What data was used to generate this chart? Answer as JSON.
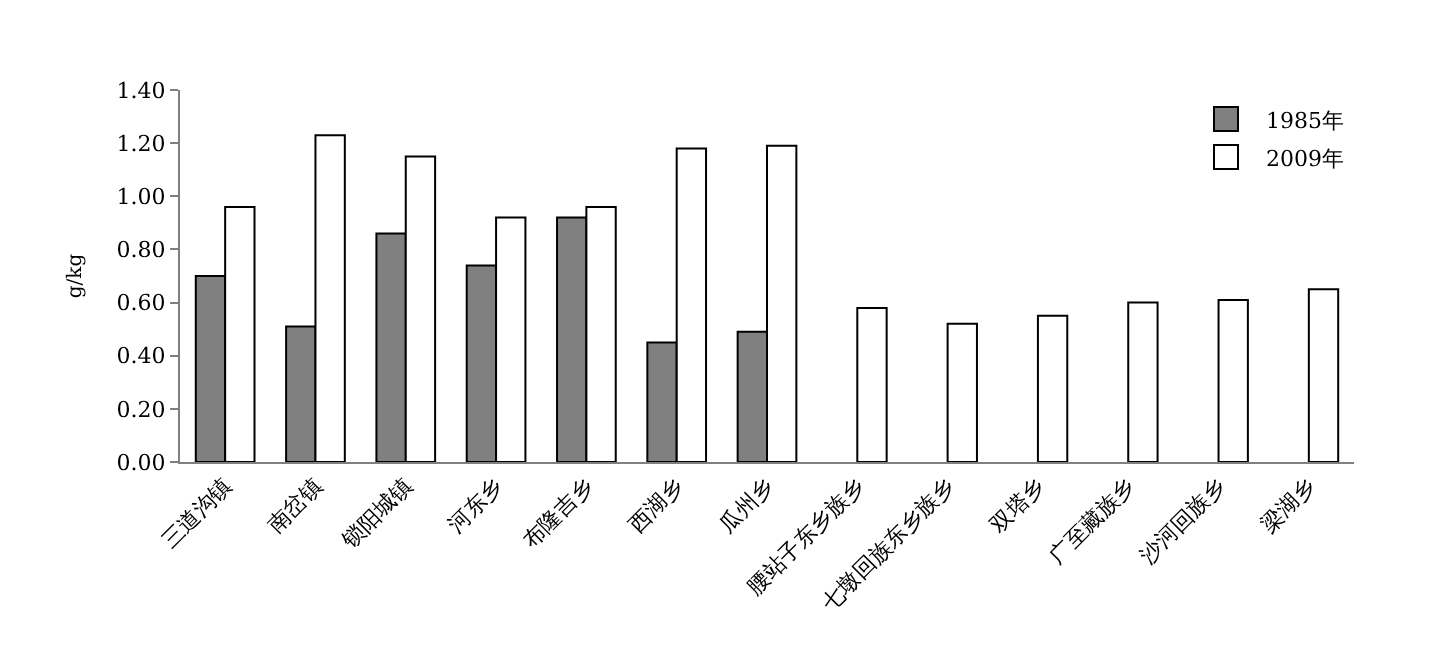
{
  "chart_data": {
    "type": "bar",
    "ylabel": "g/kg",
    "categories": [
      "三道沟镇",
      "南岔镇",
      "锁阳城镇",
      "河东乡",
      "布隆吉乡",
      "西湖乡",
      "瓜州乡",
      "腰站子东乡族乡",
      "七墩回族东乡族乡",
      "双塔乡",
      "广至藏族乡",
      "沙河回族乡",
      "梁湖乡"
    ],
    "series": [
      {
        "name": "1985年",
        "color": "#808080",
        "values": [
          0.7,
          0.51,
          0.86,
          0.74,
          0.92,
          0.45,
          0.49,
          null,
          null,
          null,
          null,
          null,
          null
        ]
      },
      {
        "name": "2009年",
        "color": "#ffffff",
        "values": [
          0.96,
          1.23,
          1.15,
          0.92,
          0.96,
          1.18,
          1.19,
          0.58,
          0.52,
          0.55,
          0.6,
          0.61,
          0.65
        ]
      }
    ],
    "ylim": [
      0,
      1.4
    ],
    "yticks": [
      {
        "value": 0,
        "label": "0.00"
      },
      {
        "value": 0.2,
        "label": "0.20"
      },
      {
        "value": 0.4,
        "label": "0.40"
      },
      {
        "value": 0.6,
        "label": "0.60"
      },
      {
        "value": 0.8,
        "label": "0.80"
      },
      {
        "value": 1.0,
        "label": "1.00"
      },
      {
        "value": 1.2,
        "label": "1.20"
      },
      {
        "value": 1.4,
        "label": "1.40"
      }
    ],
    "legend": "top right"
  }
}
